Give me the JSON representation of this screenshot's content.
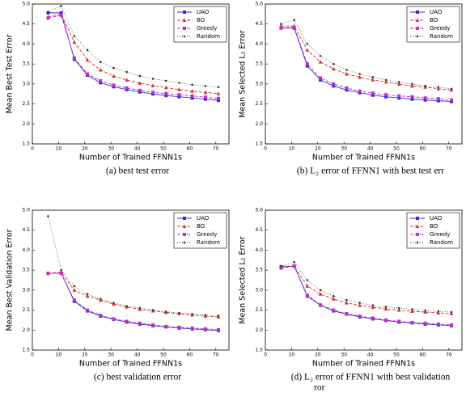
{
  "chart_data": [
    {
      "type": "line",
      "x_label": "Number of Trained FFNN1s",
      "y_label": "Mean Best Test Error",
      "caption": [
        "(a) best test error"
      ],
      "x": [
        6,
        11,
        16,
        21,
        26,
        31,
        36,
        41,
        46,
        51,
        56,
        61,
        66,
        71
      ],
      "xlim": [
        0,
        75
      ],
      "xticks": [
        0,
        10,
        20,
        30,
        40,
        50,
        60,
        70
      ],
      "ylim": [
        1.5,
        5
      ],
      "yticks": [
        1.5,
        {
          "value": 2,
          "label": "2.0"
        },
        2.5,
        {
          "value": 3,
          "label": "3.0"
        },
        3.5,
        {
          "value": 4,
          "label": "4.0"
        },
        4.5,
        {
          "value": 5,
          "label": "5.0"
        }
      ],
      "legend": "upper right",
      "series": [
        {
          "name": "UAO",
          "color": "#2b2bdf",
          "style": "solid",
          "marker": "square",
          "values": [
            4.78,
            4.78,
            3.62,
            3.22,
            3.03,
            2.93,
            2.86,
            2.8,
            2.75,
            2.71,
            2.68,
            2.65,
            2.62,
            2.59
          ]
        },
        {
          "name": "BO",
          "color": "#d83030",
          "style": "dashed",
          "marker": "triangle",
          "values": [
            4.68,
            4.75,
            4.05,
            3.6,
            3.35,
            3.2,
            3.1,
            3.02,
            2.96,
            2.91,
            2.86,
            2.82,
            2.79,
            2.76
          ]
        },
        {
          "name": "Greedy",
          "color": "#c030c0",
          "style": "dashed",
          "marker": "square",
          "values": [
            4.65,
            4.72,
            3.65,
            3.25,
            3.08,
            2.97,
            2.9,
            2.84,
            2.79,
            2.76,
            2.73,
            2.7,
            2.67,
            2.64
          ]
        },
        {
          "name": "Random",
          "color": "#333333",
          "style": "dotted",
          "marker": "dot",
          "values": [
            4.8,
            4.95,
            4.2,
            3.85,
            3.55,
            3.4,
            3.3,
            3.2,
            3.13,
            3.08,
            3.03,
            2.98,
            2.95,
            2.92
          ]
        }
      ]
    },
    {
      "type": "line",
      "x_label": "Number of Trained FFNN1s",
      "y_label": "Mean Selected L₂ Error",
      "caption": [
        "(b) L₂ error of FFNN1 with best test err"
      ],
      "x": [
        6,
        11,
        16,
        21,
        26,
        31,
        36,
        41,
        46,
        51,
        56,
        61,
        66,
        71
      ],
      "xlim": [
        0,
        75
      ],
      "xticks": [
        0,
        10,
        20,
        30,
        40,
        50,
        60,
        70
      ],
      "ylim": [
        1.5,
        5
      ],
      "yticks": [
        1.5,
        {
          "value": 2,
          "label": "2.0"
        },
        2.5,
        {
          "value": 3,
          "label": "3.0"
        },
        3.5,
        {
          "value": 4,
          "label": "4.0"
        },
        4.5,
        {
          "value": 5,
          "label": "5.0"
        }
      ],
      "legend": "upper right",
      "series": [
        {
          "name": "UAO",
          "color": "#2b2bdf",
          "style": "solid",
          "marker": "square",
          "values": [
            4.4,
            4.4,
            3.45,
            3.1,
            2.95,
            2.85,
            2.78,
            2.72,
            2.68,
            2.65,
            2.62,
            2.6,
            2.58,
            2.56
          ]
        },
        {
          "name": "BO",
          "color": "#d83030",
          "style": "dashed",
          "marker": "triangle",
          "values": [
            4.45,
            4.45,
            3.85,
            3.55,
            3.38,
            3.25,
            3.17,
            3.1,
            3.05,
            3.0,
            2.95,
            2.92,
            2.88,
            2.85
          ]
        },
        {
          "name": "Greedy",
          "color": "#c030c0",
          "style": "dashed",
          "marker": "square",
          "values": [
            4.4,
            4.42,
            3.5,
            3.15,
            3.0,
            2.9,
            2.82,
            2.77,
            2.73,
            2.7,
            2.68,
            2.65,
            2.63,
            2.6
          ]
        },
        {
          "name": "Random",
          "color": "#333333",
          "style": "dotted",
          "marker": "dot",
          "values": [
            4.5,
            4.6,
            4.0,
            3.7,
            3.5,
            3.35,
            3.25,
            3.17,
            3.1,
            3.05,
            3.0,
            2.95,
            2.92,
            2.88
          ]
        }
      ]
    },
    {
      "type": "line",
      "x_label": "Number of Trained FFNN1s",
      "y_label": "Mean Best Validation Error",
      "caption": [
        "(c) best validation error"
      ],
      "x": [
        6,
        11,
        16,
        21,
        26,
        31,
        36,
        41,
        46,
        51,
        56,
        61,
        66,
        71
      ],
      "xlim": [
        0,
        75
      ],
      "xticks": [
        0,
        10,
        20,
        30,
        40,
        50,
        60,
        70
      ],
      "ylim": [
        1.5,
        5
      ],
      "yticks": [
        1.5,
        {
          "value": 2,
          "label": "2.0"
        },
        2.5,
        {
          "value": 3,
          "label": "3.0"
        },
        3.5,
        {
          "value": 4,
          "label": "4.0"
        },
        4.5,
        {
          "value": 5,
          "label": "5.0"
        }
      ],
      "legend": "upper right",
      "series": [
        {
          "name": "UAO",
          "color": "#2b2bdf",
          "style": "solid",
          "marker": "square",
          "values": [
            3.42,
            3.42,
            2.72,
            2.48,
            2.35,
            2.27,
            2.2,
            2.15,
            2.11,
            2.08,
            2.05,
            2.03,
            2.01,
            1.99
          ]
        },
        {
          "name": "BO",
          "color": "#d83030",
          "style": "dashed",
          "marker": "triangle",
          "values": [
            3.42,
            3.45,
            3.0,
            2.85,
            2.75,
            2.65,
            2.58,
            2.52,
            2.48,
            2.44,
            2.41,
            2.38,
            2.35,
            2.33
          ]
        },
        {
          "name": "Greedy",
          "color": "#c030c0",
          "style": "dashed",
          "marker": "square",
          "values": [
            3.42,
            3.42,
            2.75,
            2.5,
            2.37,
            2.28,
            2.22,
            2.17,
            2.13,
            2.09,
            2.07,
            2.05,
            2.03,
            2.01
          ]
        },
        {
          "name": "Random",
          "color": "#333333",
          "style": "dotted",
          "marker": "dot",
          "values": [
            4.85,
            3.5,
            3.1,
            2.9,
            2.78,
            2.68,
            2.6,
            2.55,
            2.5,
            2.46,
            2.43,
            2.4,
            2.38,
            2.36
          ]
        }
      ]
    },
    {
      "type": "line",
      "x_label": "Number of Trained FFNN1s",
      "y_label": "Mean Selected L₂ Error",
      "caption": [
        "(d) L₂ error of FFNN1 with best validation",
        "ror"
      ],
      "x": [
        6,
        11,
        16,
        21,
        26,
        31,
        36,
        41,
        46,
        51,
        56,
        61,
        66,
        71
      ],
      "xlim": [
        0,
        75
      ],
      "xticks": [
        0,
        10,
        20,
        30,
        40,
        50,
        60,
        70
      ],
      "ylim": [
        1.5,
        5
      ],
      "yticks": [
        1.5,
        {
          "value": 2,
          "label": "2.0"
        },
        2.5,
        {
          "value": 3,
          "label": "3.0"
        },
        3.5,
        {
          "value": 4,
          "label": "4.0"
        },
        4.5,
        {
          "value": 5,
          "label": "5.0"
        }
      ],
      "legend": "upper right",
      "series": [
        {
          "name": "UAO",
          "color": "#2b2bdf",
          "style": "solid",
          "marker": "square",
          "values": [
            3.58,
            3.6,
            2.85,
            2.62,
            2.48,
            2.4,
            2.33,
            2.28,
            2.24,
            2.2,
            2.18,
            2.15,
            2.13,
            2.11
          ]
        },
        {
          "name": "BO",
          "color": "#d83030",
          "style": "dashed",
          "marker": "triangle",
          "values": [
            3.6,
            3.6,
            3.1,
            2.9,
            2.78,
            2.68,
            2.62,
            2.57,
            2.53,
            2.5,
            2.47,
            2.45,
            2.43,
            2.41
          ]
        },
        {
          "name": "Greedy",
          "color": "#c030c0",
          "style": "dashed",
          "marker": "square",
          "values": [
            3.55,
            3.6,
            2.87,
            2.63,
            2.5,
            2.41,
            2.35,
            2.3,
            2.25,
            2.22,
            2.19,
            2.17,
            2.15,
            2.13
          ]
        },
        {
          "name": "Random",
          "color": "#333333",
          "style": "dotted",
          "marker": "dot",
          "values": [
            3.6,
            3.7,
            3.25,
            3.0,
            2.85,
            2.75,
            2.68,
            2.62,
            2.58,
            2.55,
            2.52,
            2.49,
            2.47,
            2.45
          ]
        }
      ]
    }
  ]
}
